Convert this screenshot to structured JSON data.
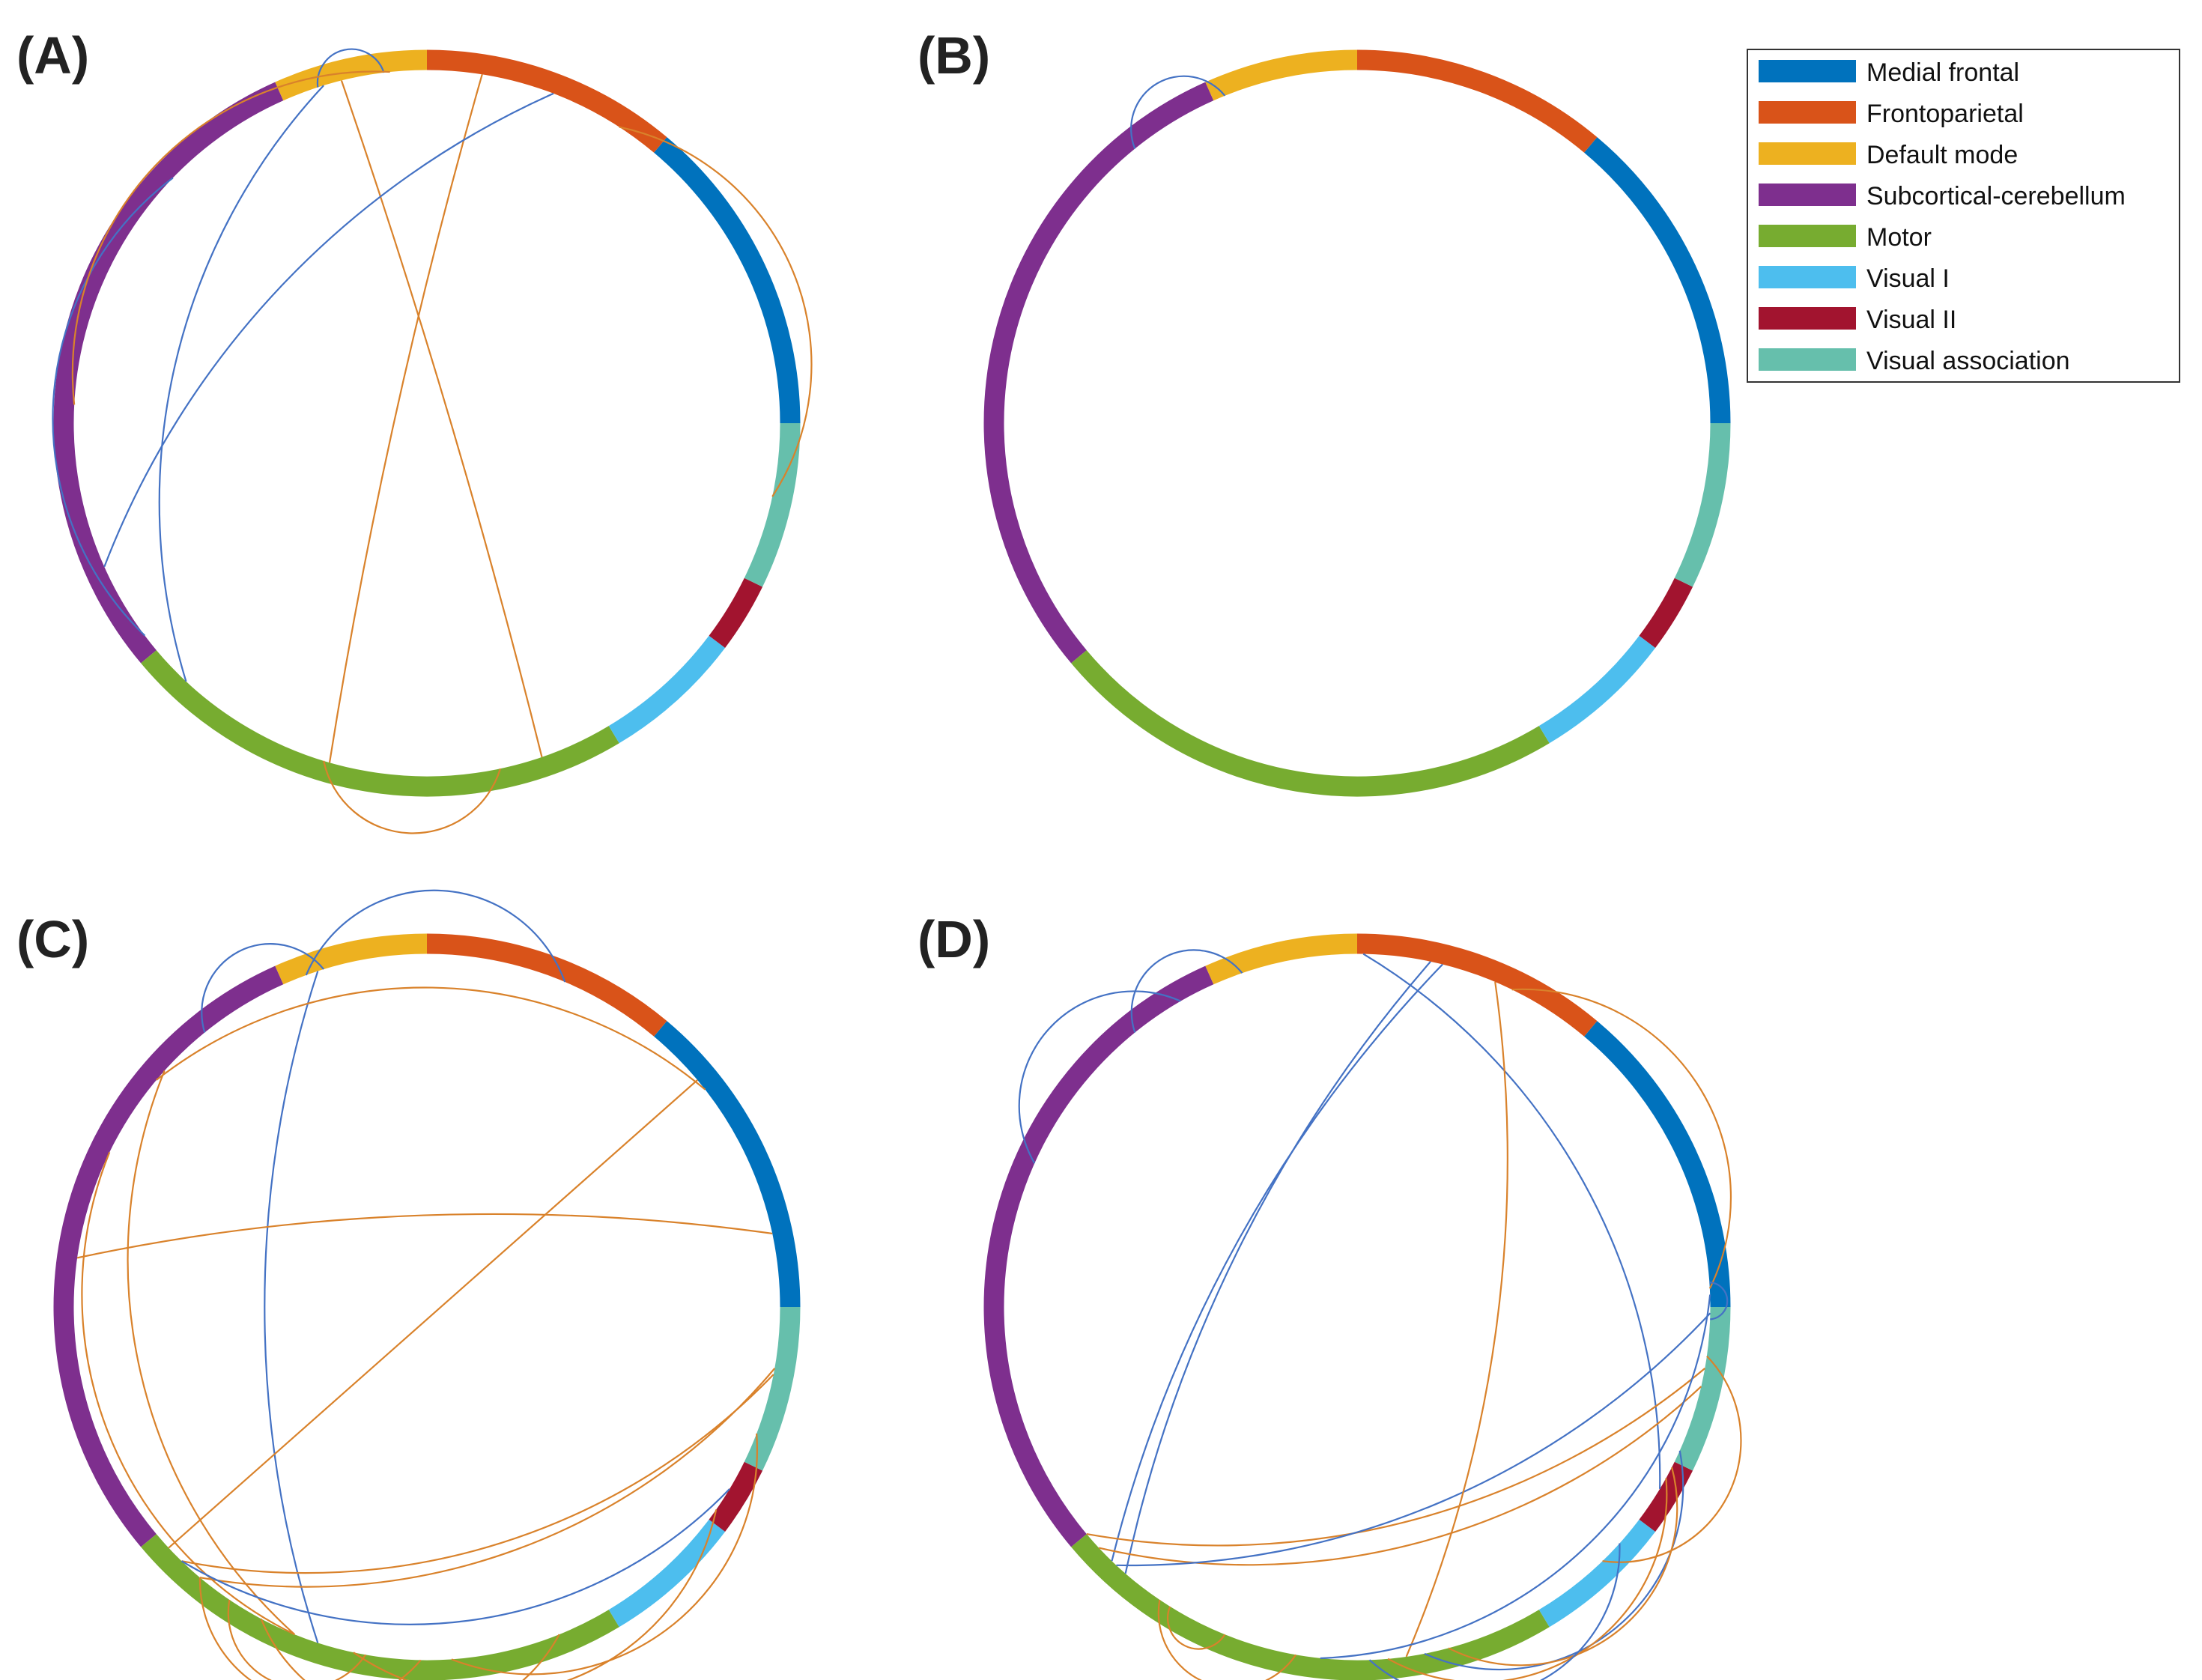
{
  "networks": [
    {
      "id": "medial_frontal",
      "label": "Medial frontal",
      "color": "#0072BD"
    },
    {
      "id": "frontoparietal",
      "label": "Frontoparietal",
      "color": "#D95319"
    },
    {
      "id": "default_mode",
      "label": "Default mode",
      "color": "#EDB120"
    },
    {
      "id": "subcortical_cerebellum",
      "label": "Subcortical-cerebellum",
      "color": "#7E2F8E"
    },
    {
      "id": "motor",
      "label": "Motor",
      "color": "#77AC30"
    },
    {
      "id": "visual_1",
      "label": "Visual I",
      "color": "#4DBEEE"
    },
    {
      "id": "visual_2",
      "label": "Visual II",
      "color": "#A2142F"
    },
    {
      "id": "visual_association",
      "label": "Visual association",
      "color": "#66BFAC"
    }
  ],
  "edge_colors": {
    "blue": "#4472C4",
    "orange": "#D9822B"
  },
  "panels": [
    {
      "label": "(A)",
      "edges": [
        {
          "a": 108,
          "b": 97,
          "color": "blue"
        },
        {
          "a": 107,
          "b": 227,
          "color": "blue"
        },
        {
          "a": 104,
          "b": 289,
          "color": "orange"
        },
        {
          "a": 81,
          "b": 254,
          "color": "orange"
        },
        {
          "a": 348,
          "b": 57,
          "color": "orange"
        },
        {
          "a": 69,
          "b": 204,
          "color": "blue"
        },
        {
          "a": 136,
          "b": 217,
          "color": "blue"
        },
        {
          "a": 96,
          "b": 177,
          "color": "orange"
        },
        {
          "a": 253,
          "b": 282,
          "color": "orange"
        }
      ]
    },
    {
      "label": "(B)",
      "edges": [
        {
          "a": 129,
          "b": 112,
          "color": "blue"
        }
      ]
    },
    {
      "label": "(C)",
      "edges": [
        {
          "a": 110,
          "b": 67,
          "color": "blue"
        },
        {
          "a": 108,
          "b": 252,
          "color": "blue"
        },
        {
          "a": 129,
          "b": 107,
          "color": "blue"
        },
        {
          "a": 154,
          "b": 248,
          "color": "orange"
        },
        {
          "a": 140,
          "b": 38,
          "color": "orange"
        },
        {
          "a": 172,
          "b": 12,
          "color": "orange"
        },
        {
          "a": 223,
          "b": 40,
          "color": "orange"
        },
        {
          "a": 138,
          "b": 248,
          "color": "orange"
        },
        {
          "a": 230,
          "b": 350,
          "color": "orange"
        },
        {
          "a": 226,
          "b": 349,
          "color": "orange"
        },
        {
          "a": 230,
          "b": 269,
          "color": "orange"
        },
        {
          "a": 236,
          "b": 260,
          "color": "orange"
        },
        {
          "a": 226,
          "b": 329,
          "color": "blue"
        },
        {
          "a": 242,
          "b": 292,
          "color": "orange"
        },
        {
          "a": 274,
          "b": 339,
          "color": "orange"
        },
        {
          "a": 258,
          "b": 325,
          "color": "orange"
        }
      ]
    },
    {
      "label": "(D)",
      "edges": [
        {
          "a": 120,
          "b": 156,
          "color": "blue"
        },
        {
          "a": 129,
          "b": 109,
          "color": "blue"
        },
        {
          "a": 89,
          "b": 329,
          "color": "blue"
        },
        {
          "a": 78,
          "b": 229,
          "color": "blue"
        },
        {
          "a": 226,
          "b": 76,
          "color": "blue"
        },
        {
          "a": 220,
          "b": 350,
          "color": "orange"
        },
        {
          "a": 223,
          "b": 347,
          "color": "orange"
        },
        {
          "a": 227,
          "b": 359,
          "color": "blue"
        },
        {
          "a": 67,
          "b": 278,
          "color": "orange"
        },
        {
          "a": 264,
          "b": 2,
          "color": "blue"
        },
        {
          "a": 281,
          "b": 336,
          "color": "blue"
        },
        {
          "a": 285,
          "b": 333,
          "color": "orange"
        },
        {
          "a": 275,
          "b": 331,
          "color": "orange"
        },
        {
          "a": 64,
          "b": 3,
          "color": "orange"
        },
        {
          "a": 358,
          "b": 4,
          "color": "blue"
        },
        {
          "a": 236,
          "b": 260,
          "color": "orange"
        },
        {
          "a": 238,
          "b": 248,
          "color": "orange"
        },
        {
          "a": 314,
          "b": 352,
          "color": "orange"
        },
        {
          "a": 272,
          "b": 318,
          "color": "blue"
        }
      ]
    }
  ]
}
